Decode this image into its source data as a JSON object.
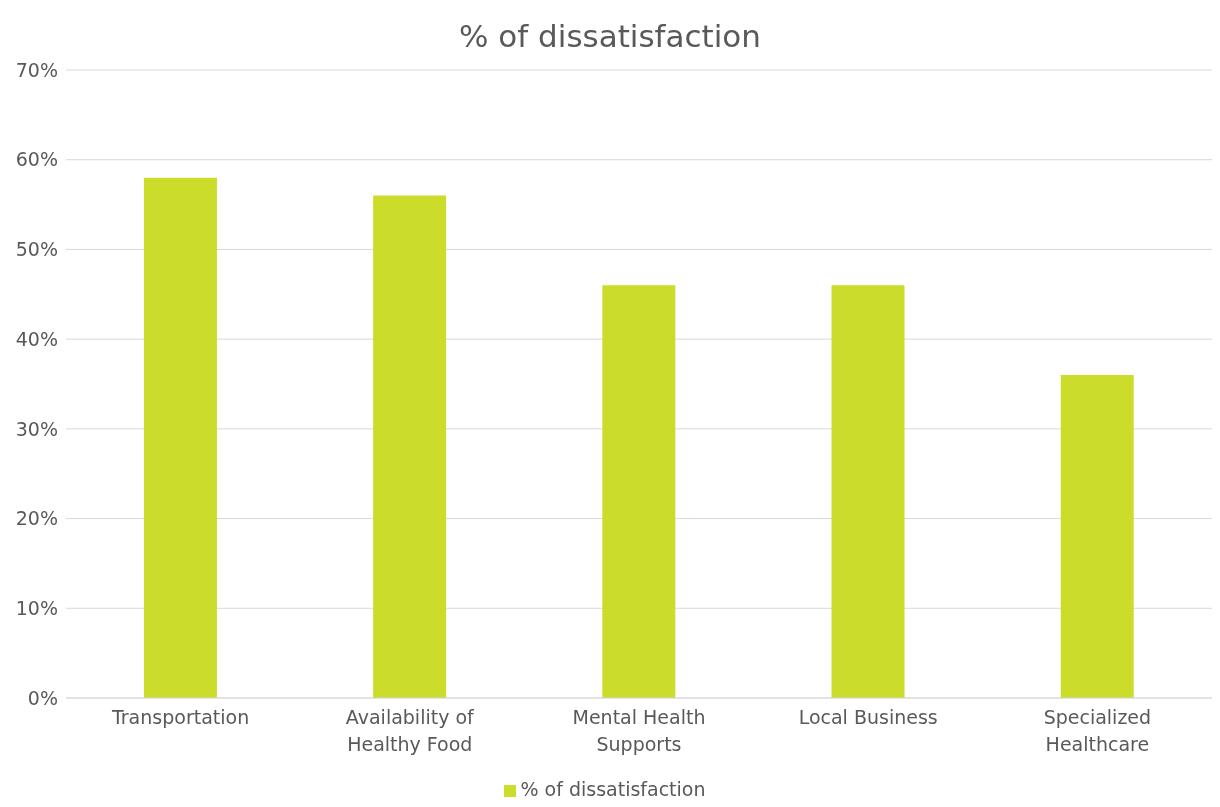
{
  "chart_data": {
    "type": "bar",
    "title": "% of dissatisfaction",
    "categories": [
      "Transportation",
      "Availability of Healthy Food",
      "Mental Health Supports",
      "Local Business",
      "Specialized Healthcare"
    ],
    "series": [
      {
        "name": "% of dissatisfaction",
        "color": "#cbdc2a",
        "values": [
          58,
          56,
          46,
          46,
          36
        ]
      }
    ],
    "ylim": [
      0,
      70
    ],
    "yticks": [
      {
        "value": 0,
        "label": "0%"
      },
      {
        "value": 10,
        "label": "10%"
      },
      {
        "value": 20,
        "label": "20%"
      },
      {
        "value": 30,
        "label": "30%"
      },
      {
        "value": 40,
        "label": "40%"
      },
      {
        "value": 50,
        "label": "50%"
      },
      {
        "value": 60,
        "label": "60%"
      },
      {
        "value": 70,
        "label": "70%"
      }
    ],
    "grid": "y",
    "legend": "bottom"
  }
}
